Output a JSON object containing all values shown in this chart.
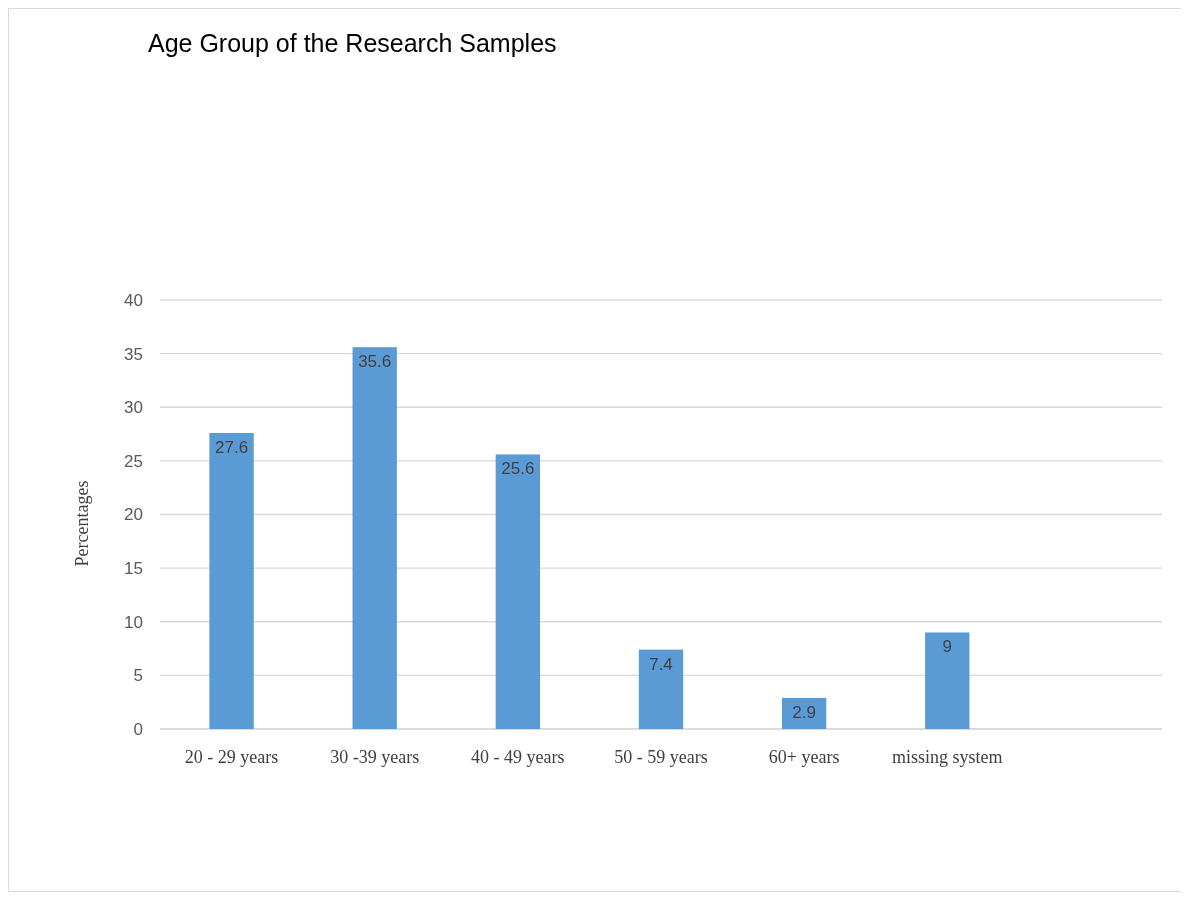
{
  "chart_data": {
    "type": "bar",
    "title": "Age Group of the Research Samples",
    "ylabel": "Percentages",
    "categories": [
      "20 - 29 years",
      "30 -39 years",
      "40 - 49 years",
      "50 - 59 years",
      "60+ years",
      "missing system",
      null
    ],
    "values": [
      27.6,
      35.6,
      25.6,
      7.4,
      2.9,
      9,
      null
    ],
    "color": "#5b9bd5",
    "ylim": [
      0,
      40
    ],
    "yticks": [
      0,
      5,
      10,
      15,
      20,
      25,
      30,
      35,
      40
    ],
    "grid": "y",
    "data_labels": true
  }
}
